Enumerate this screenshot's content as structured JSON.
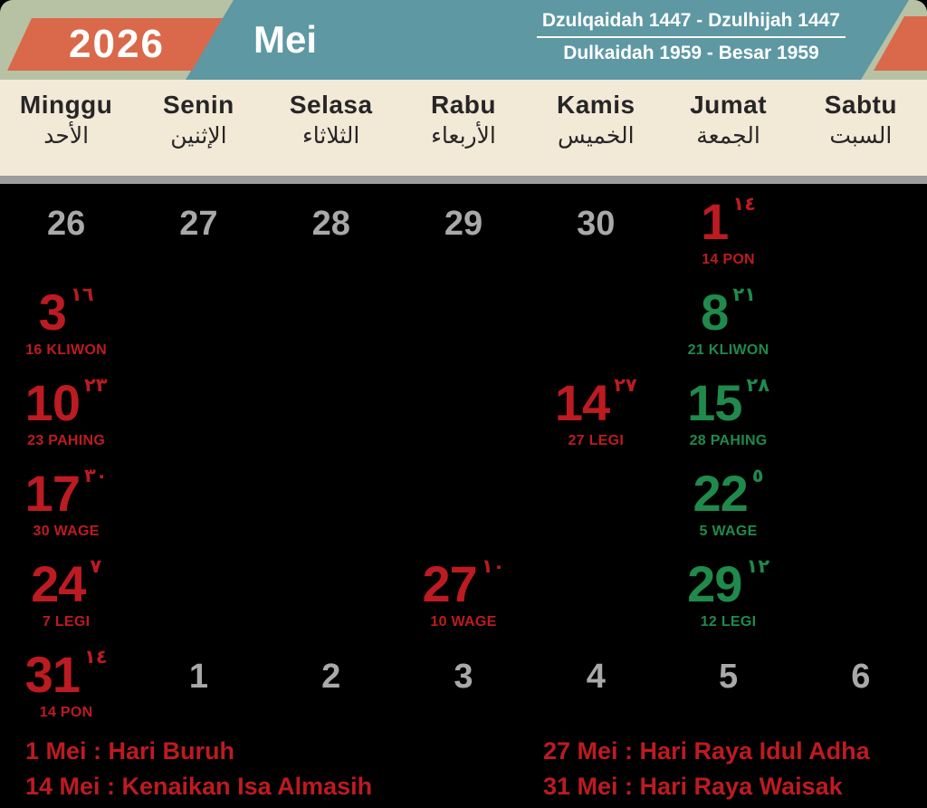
{
  "header": {
    "year": "2026",
    "month": "Mei",
    "hijri_range": "Dzulqaidah 1447 - Dzulhijah 1447",
    "javanese_range": "Dulkaidah 1959 - Besar 1959"
  },
  "colors": {
    "holiday_red": "#bc1b21",
    "friday_green": "#1f8a4c",
    "adjacent_gray": "#a9a9a9",
    "header_orange": "#d9694a",
    "header_teal": "#5d98a3",
    "header_sage": "#b7c2a5",
    "band_cream": "#f3e9d7",
    "background": "#000000"
  },
  "week_header": {
    "days": [
      {
        "name": "Minggu",
        "arabic": "الأحد"
      },
      {
        "name": "Senin",
        "arabic": "الإثنين"
      },
      {
        "name": "Selasa",
        "arabic": "الثلاثاء"
      },
      {
        "name": "Rabu",
        "arabic": "الأربعاء"
      },
      {
        "name": "Kamis",
        "arabic": "الخميس"
      },
      {
        "name": "Jumat",
        "arabic": "الجمعة"
      },
      {
        "name": "Sabtu",
        "arabic": "السبت"
      }
    ]
  },
  "calendar": {
    "weeks": [
      [
        {
          "day": "26",
          "style": "gray"
        },
        {
          "day": "27",
          "style": "gray"
        },
        {
          "day": "28",
          "style": "gray"
        },
        {
          "day": "29",
          "style": "gray"
        },
        {
          "day": "30",
          "style": "gray"
        },
        {
          "day": "1",
          "style": "red",
          "hijri": "١٤",
          "javanese": "14 PON"
        },
        null
      ],
      [
        {
          "day": "3",
          "style": "red",
          "hijri": "١٦",
          "javanese": "16 KLIWON"
        },
        null,
        null,
        null,
        null,
        {
          "day": "8",
          "style": "green",
          "hijri": "٢١",
          "javanese": "21 KLIWON"
        },
        null
      ],
      [
        {
          "day": "10",
          "style": "red",
          "hijri": "٢٣",
          "javanese": "23 PAHING"
        },
        null,
        null,
        null,
        {
          "day": "14",
          "style": "red",
          "hijri": "٢٧",
          "javanese": "27 LEGI"
        },
        {
          "day": "15",
          "style": "green",
          "hijri": "٢٨",
          "javanese": "28 PAHING"
        },
        null
      ],
      [
        {
          "day": "17",
          "style": "red",
          "hijri": "٣٠",
          "javanese": "30 WAGE"
        },
        null,
        null,
        null,
        null,
        {
          "day": "22",
          "style": "green",
          "hijri": "٥",
          "javanese": "5 WAGE"
        },
        null
      ],
      [
        {
          "day": "24",
          "style": "red",
          "hijri": "٧",
          "javanese": "7 LEGI"
        },
        null,
        null,
        {
          "day": "27",
          "style": "red",
          "hijri": "١٠",
          "javanese": "10 WAGE"
        },
        null,
        {
          "day": "29",
          "style": "green",
          "hijri": "١٢",
          "javanese": "12 LEGI"
        },
        null
      ],
      [
        {
          "day": "31",
          "style": "red",
          "hijri": "١٤",
          "javanese": "14 PON"
        },
        {
          "day": "1",
          "style": "gray"
        },
        {
          "day": "2",
          "style": "gray"
        },
        {
          "day": "3",
          "style": "gray"
        },
        {
          "day": "4",
          "style": "gray"
        },
        {
          "day": "5",
          "style": "gray"
        },
        {
          "day": "6",
          "style": "gray"
        }
      ]
    ]
  },
  "legend": {
    "left": [
      "1 Mei : Hari Buruh",
      "14 Mei : Kenaikan Isa Almasih"
    ],
    "right": [
      "27 Mei : Hari Raya Idul Adha",
      "31 Mei : Hari Raya Waisak"
    ]
  }
}
